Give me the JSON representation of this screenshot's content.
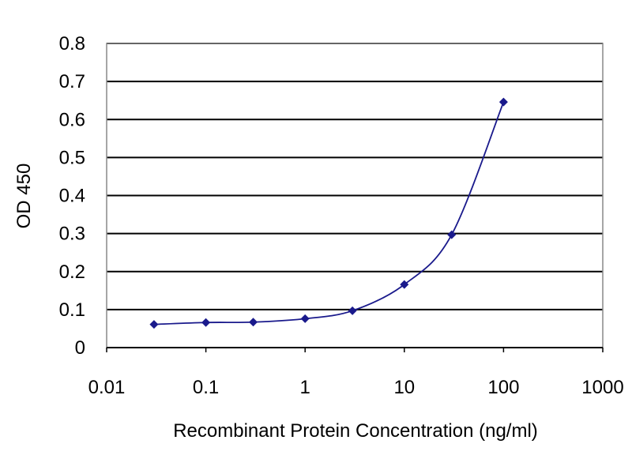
{
  "colors": {
    "series": "#1a1a8c",
    "gridline": "#000000",
    "background": "#ffffff"
  },
  "chart_data": {
    "type": "line",
    "title": "",
    "xlabel": "Recombinant Protein Concentration (ng/ml)",
    "ylabel": "OD 450",
    "x_scale": "log",
    "xlim": [
      0.01,
      1000
    ],
    "ylim": [
      0,
      0.8
    ],
    "x_ticks": [
      0.01,
      0.1,
      1,
      10,
      100,
      1000
    ],
    "x_tick_labels": [
      "0.01",
      "0.1",
      "1",
      "10",
      "100",
      "1000"
    ],
    "y_ticks": [
      0,
      0.1,
      0.2,
      0.3,
      0.4,
      0.5,
      0.6,
      0.7,
      0.8
    ],
    "y_tick_labels": [
      "0",
      "0.1",
      "0.2",
      "0.3",
      "0.4",
      "0.5",
      "0.6",
      "0.7",
      "0.8"
    ],
    "grid": "horizontal",
    "legend": "none",
    "series": [
      {
        "x": [
          0.03,
          0.1,
          0.3,
          1,
          3,
          10,
          30,
          100
        ],
        "y": [
          0.061,
          0.066,
          0.067,
          0.076,
          0.097,
          0.166,
          0.297,
          0.646
        ]
      }
    ]
  }
}
